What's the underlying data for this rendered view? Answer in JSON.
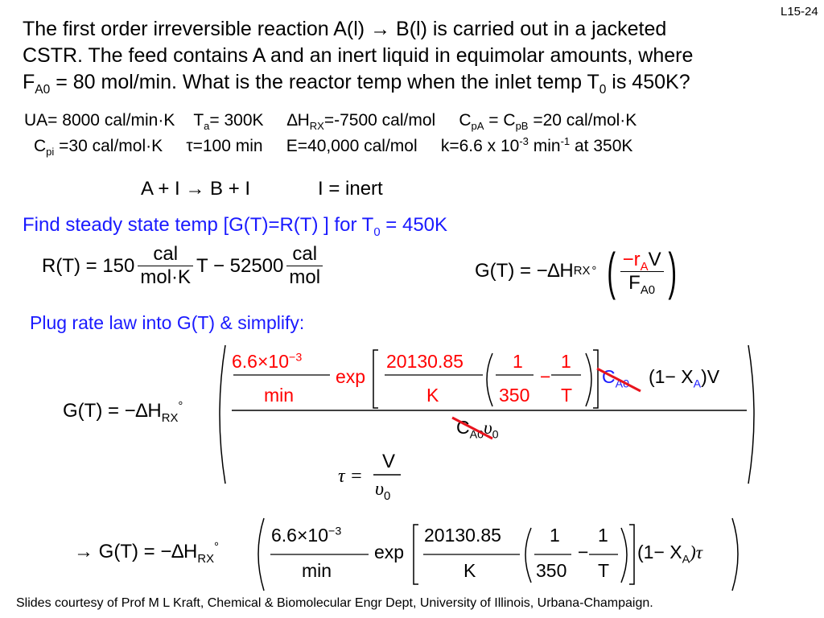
{
  "slide_number": "L15-24",
  "problem": {
    "line1_a": "The first order irreversible reaction A(l)",
    "line1_arrow": "→",
    "line1_b": "B(l) is carried out in a jacketed",
    "line2": "CSTR.  The feed contains A and an inert liquid in equimolar amounts, where",
    "line3_F": "F",
    "line3_sub": "A0",
    "line3_mid": " = 80 mol/min.  What is the reactor temp when the inlet temp T",
    "line3_sub0": "0",
    "line3_end": " is 450K?"
  },
  "params": {
    "ua": "UA= 8000 cal/min·K",
    "ta_T": "T",
    "ta_sub": "a",
    "ta_val": "= 300K",
    "dh_delta": "∆H",
    "dh_sub": "RX",
    "dh_val": "=-7500 cal/mol",
    "cp_C": "C",
    "cp_sub1": "pA",
    "cp_eq": " = C",
    "cp_sub2": "pB",
    "cp_val": " =20 cal/mol·K",
    "cpi_C": "C",
    "cpi_sub": "pi",
    "cpi_val": " =30 cal/mol·K",
    "tau": "τ=100 min",
    "E": "E=40,000 cal/mol",
    "k_a": "k=6.6 x 10",
    "k_exp": "-3",
    "k_b": " min",
    "k_exp2": "-1",
    "k_c": " at 350K"
  },
  "reaction": {
    "equation": "A + I → B + I",
    "inert_note": "I = inert"
  },
  "find_line": {
    "text": "Find steady state temp [G(T)=R(T) ] for T",
    "sub": "0",
    "end": " = 450K"
  },
  "R_eq": {
    "lhs": "R(T) = 150",
    "unit1_num": "cal",
    "unit1_den": "mol·K",
    "mid": "T − 52500",
    "unit2_num": "cal",
    "unit2_den": "mol"
  },
  "G_eq": {
    "lhs": "G(T) = −∆H",
    "sub": "RX",
    "circ": "°",
    "num": "−r",
    "num_sub": "A",
    "num_V": "V",
    "den": "F",
    "den_sub": "A0"
  },
  "plug_line": "Plug rate law into G(T) & simplify:",
  "big_eq": {
    "lhs": "G(T) = −∆H",
    "sub": "RX",
    "circ": "°",
    "k_num": "6.6×10",
    "k_exp": "−3",
    "k_den": "min",
    "exp": "exp",
    "ea_num": "20130.85",
    "ea_den": "K",
    "one": "1",
    "t350": "350",
    "minus": "−",
    "T": "T",
    "ca0": "C",
    "ca0_sub": "A0",
    "conv": "(1− X",
    "conv_sub": "A",
    "conv_end": ")V",
    "den_C": "C",
    "den_sub": "A0",
    "den_nu": "υ",
    "den_nu_sub": "0"
  },
  "tau_eq": {
    "lhs": "τ =",
    "num": "V",
    "den": "υ",
    "den_sub": "0"
  },
  "final_eq": {
    "arrow": "→",
    "lhs": "G(T) = −∆H",
    "sub": "RX",
    "circ": "°",
    "k_num": "6.6×10",
    "k_exp": "−3",
    "k_den": "min",
    "exp": "exp",
    "ea_num": "20130.85",
    "ea_den": "K",
    "one": "1",
    "t350": "350",
    "minus": "−",
    "T": "T",
    "conv": "(1− X",
    "conv_sub": "A",
    "conv_end": ")τ"
  },
  "footer": "Slides courtesy of Prof M L Kraft, Chemical & Biomolecular Engr Dept, University of Illinois, Urbana-Champaign.",
  "colors": {
    "blue_text": "#1a1aff",
    "red_text": "#ff0000",
    "strike": "#e8141e"
  }
}
